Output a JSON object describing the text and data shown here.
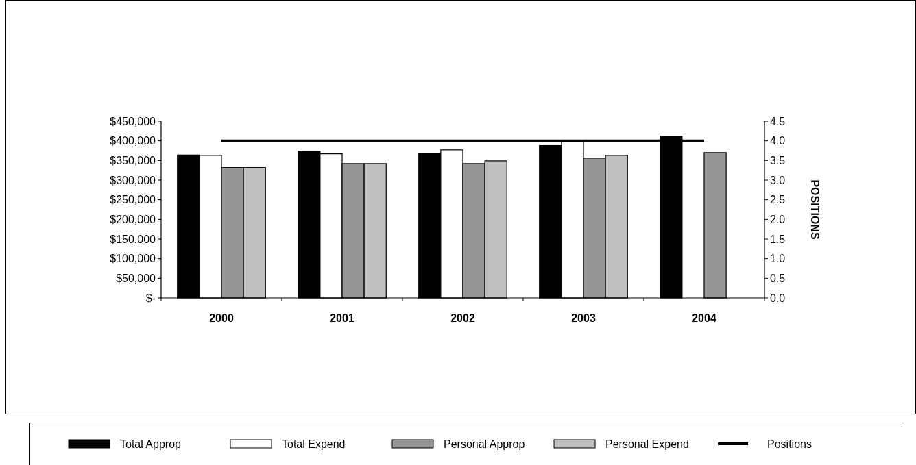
{
  "chart_data": {
    "type": "bar",
    "categories": [
      "2000",
      "2001",
      "2002",
      "2003",
      "2004"
    ],
    "series": [
      {
        "name": "Total Approp",
        "color": "#000000",
        "values": [
          364000,
          374000,
          367000,
          388000,
          412000
        ]
      },
      {
        "name": "Total Expend",
        "color": "#ffffff",
        "values": [
          363000,
          367000,
          377000,
          397000,
          null
        ]
      },
      {
        "name": "Personal Approp",
        "color": "#969696",
        "values": [
          332000,
          342000,
          342000,
          356000,
          370000
        ]
      },
      {
        "name": "Personal Expend",
        "color": "#c0c0c0",
        "values": [
          332000,
          342000,
          349000,
          363000,
          null
        ]
      },
      {
        "name": "Positions",
        "type": "line",
        "axis": "y2",
        "color": "#000000",
        "values": [
          4,
          4,
          4,
          4,
          4
        ]
      }
    ],
    "ylim": [
      0,
      450000
    ],
    "yticks": [
      {
        "value": 0,
        "label": "$-"
      },
      {
        "value": 50000,
        "label": "$50,000"
      },
      {
        "value": 100000,
        "label": "$100,000"
      },
      {
        "value": 150000,
        "label": "$150,000"
      },
      {
        "value": 200000,
        "label": "$200,000"
      },
      {
        "value": 250000,
        "label": "$250,000"
      },
      {
        "value": 300000,
        "label": "$300,000"
      },
      {
        "value": 350000,
        "label": "$350,000"
      },
      {
        "value": 400000,
        "label": "$400,000"
      },
      {
        "value": 450000,
        "label": "$450,000"
      }
    ],
    "y2lim": [
      0,
      4.5
    ],
    "y2ticks": [
      {
        "value": 0,
        "label": "0.0"
      },
      {
        "value": 0.5,
        "label": "0.5"
      },
      {
        "value": 1,
        "label": "1.0"
      },
      {
        "value": 1.5,
        "label": "1.5"
      },
      {
        "value": 2,
        "label": "2.0"
      },
      {
        "value": 2.5,
        "label": "2.5"
      },
      {
        "value": 3,
        "label": "3.0"
      },
      {
        "value": 3.5,
        "label": "3.5"
      },
      {
        "value": 4,
        "label": "4.0"
      },
      {
        "value": 4.5,
        "label": "4.5"
      }
    ],
    "y2label": "POSITIONS",
    "legend": "bottom",
    "grid": false
  }
}
